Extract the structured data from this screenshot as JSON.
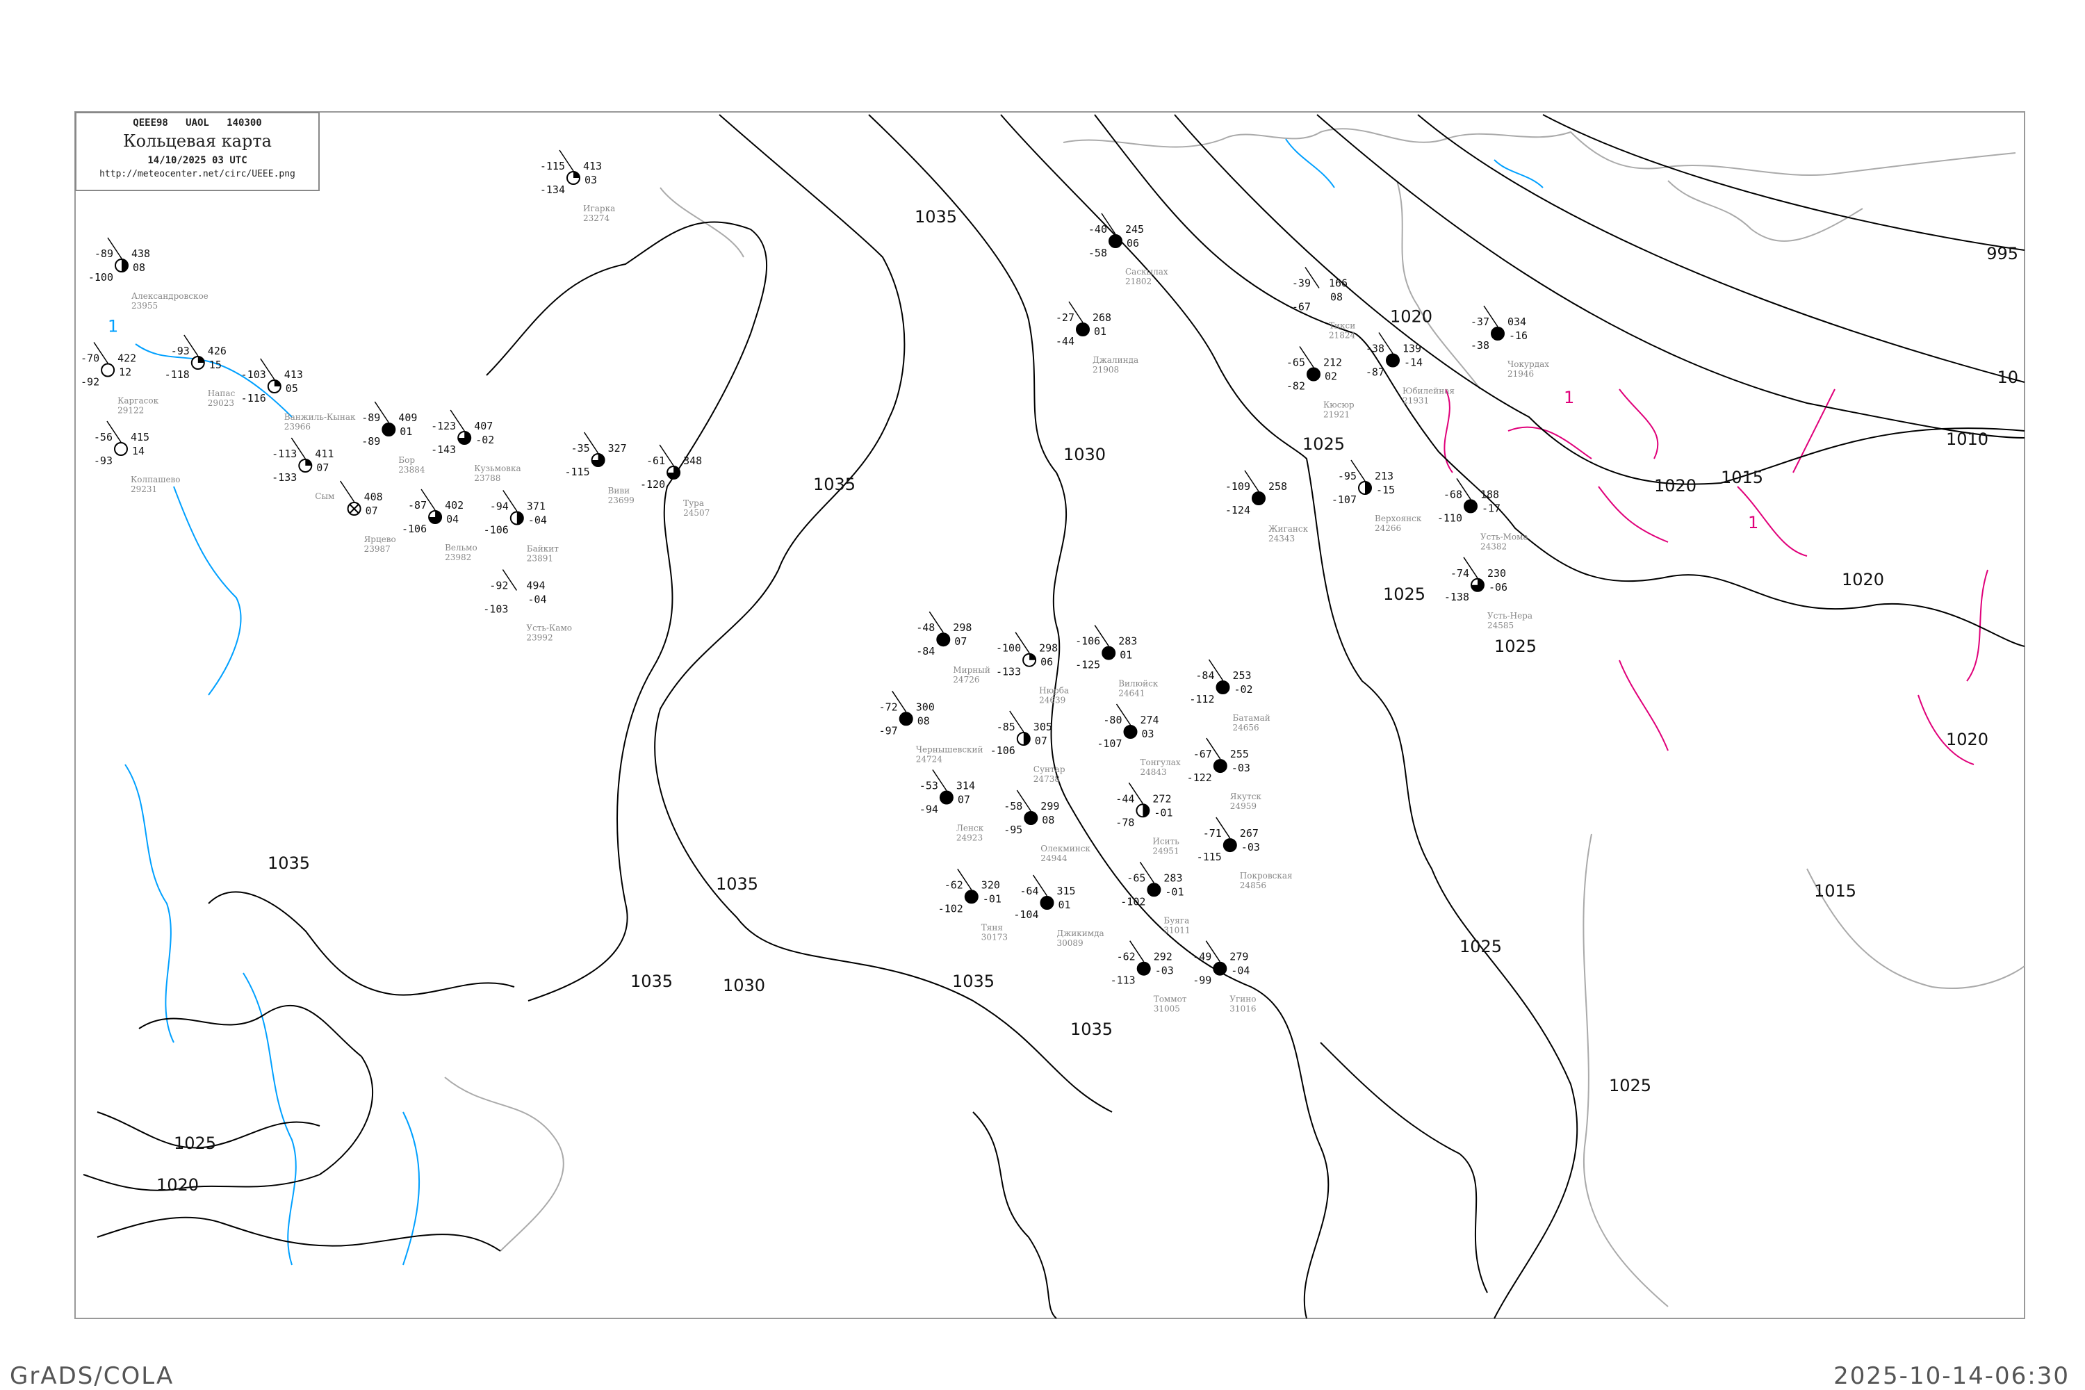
{
  "header": {
    "code_line": "QEEE98   UAOL   140300",
    "title": "Кольцевая карта",
    "date": "14/10/2025 03 UTC",
    "url": "http://meteocenter.net/circ/UEEE.png"
  },
  "footer": {
    "left": "GrADS/COLA",
    "right": "2025-10-14-06:30"
  },
  "colors": {
    "isobar": "#000000",
    "coast": "#aaaaaa",
    "river": "#00a0ff",
    "isotherm": "#e0007a",
    "snow_marker": "#3399ff",
    "highlight_marker": "#ffee00"
  },
  "isobar_labels": [
    "1035",
    "1035",
    "1035",
    "1035",
    "1035",
    "1035",
    "1030",
    "1030",
    "1025",
    "1025",
    "1025",
    "1025",
    "1025",
    "1020",
    "1020",
    "1020",
    "1020",
    "1015",
    "1015",
    "1010",
    "10",
    "995",
    "1025",
    "1020",
    "1035"
  ],
  "isotherm_labels": [
    "1",
    "1",
    "1"
  ],
  "stations": [
    {
      "name": "Игарка",
      "id": "23274",
      "t": "-115",
      "p": "413",
      "td": "-134",
      "tend": "03",
      "cover": "partial"
    },
    {
      "name": "Александровское",
      "id": "23955",
      "t": "-89",
      "p": "438",
      "td": "-100",
      "tend": "08",
      "cover": "half"
    },
    {
      "name": "Каргасок",
      "id": "29122",
      "t": "-70",
      "p": "422",
      "td": "-92",
      "tend": "12",
      "cover": "clear"
    },
    {
      "name": "Напас",
      "id": "29023",
      "t": "-93",
      "p": "426",
      "td": "-118",
      "tend": "15",
      "cover": "partial"
    },
    {
      "name": "Ванжиль-Кынак",
      "id": "23966",
      "t": "-103",
      "p": "413",
      "td": "-116",
      "tend": "05",
      "cover": "partial"
    },
    {
      "name": "Колпашево",
      "id": "29231",
      "t": "-56",
      "p": "415",
      "td": "-93",
      "tend": "14",
      "cover": "clear"
    },
    {
      "name": "Сым",
      "id": "",
      "t": "-113",
      "p": "411",
      "td": "-133",
      "tend": "07",
      "cover": "partial"
    },
    {
      "name": "Бор",
      "id": "23884",
      "t": "-89",
      "p": "409",
      "td": "-89",
      "tend": "01",
      "cover": "overcast"
    },
    {
      "name": "Кузьмовка",
      "id": "23788",
      "t": "-123",
      "p": "407",
      "td": "-143",
      "tend": "-02",
      "cover": "mostly"
    },
    {
      "name": "Ярцево",
      "id": "23987",
      "t": "",
      "p": "408",
      "td": "",
      "tend": "07",
      "cover": "obscured"
    },
    {
      "name": "Вельмо",
      "id": "23982",
      "t": "-87",
      "p": "402",
      "td": "-106",
      "tend": "04",
      "cover": "mostly"
    },
    {
      "name": "Байкит",
      "id": "23891",
      "t": "-94",
      "p": "371",
      "td": "-106",
      "tend": "-04",
      "cover": "half"
    },
    {
      "name": "Усть-Камо",
      "id": "23992",
      "t": "-92",
      "p": "494",
      "td": "-103",
      "tend": "-04",
      "cover": "none"
    },
    {
      "name": "Виви",
      "id": "23699",
      "t": "-35",
      "p": "327",
      "td": "-115",
      "tend": "",
      "cover": "mostly"
    },
    {
      "name": "Тура",
      "id": "24507",
      "t": "-61",
      "p": "348",
      "td": "-120",
      "tend": "",
      "cover": "mostly"
    },
    {
      "name": "Саскылах",
      "id": "21802",
      "t": "-40",
      "p": "245",
      "td": "-58",
      "tend": "06",
      "cover": "overcast"
    },
    {
      "name": "Джалинда",
      "id": "21908",
      "t": "-27",
      "p": "268",
      "td": "-44",
      "tend": "01",
      "cover": "overcast"
    },
    {
      "name": "Тикси",
      "id": "21824",
      "t": "-39",
      "p": "166",
      "td": "-67",
      "tend": "08",
      "cover": "none"
    },
    {
      "name": "Кюсюр",
      "id": "21921",
      "t": "-65",
      "p": "212",
      "td": "-82",
      "tend": "02",
      "cover": "overcast"
    },
    {
      "name": "Юбилейная",
      "id": "21931",
      "t": "-38",
      "p": "139",
      "td": "-87",
      "tend": "-14",
      "cover": "overcast"
    },
    {
      "name": "Чокурдах",
      "id": "21946",
      "t": "-37",
      "p": "034",
      "td": "-38",
      "tend": "-16",
      "cover": "overcast"
    },
    {
      "name": "Жиганск",
      "id": "24343",
      "t": "-109",
      "p": "258",
      "td": "-124",
      "tend": "",
      "cover": "overcast"
    },
    {
      "name": "Верхоянск",
      "id": "24266",
      "t": "-95",
      "p": "213",
      "td": "-107",
      "tend": "-15",
      "cover": "half"
    },
    {
      "name": "Усть-Мома",
      "id": "24382",
      "t": "-68",
      "p": "188",
      "td": "-110",
      "tend": "-17",
      "cover": "overcast"
    },
    {
      "name": "Усть-Нера",
      "id": "24585",
      "t": "-74",
      "p": "230",
      "td": "-138",
      "tend": "-06",
      "cover": "mostly"
    },
    {
      "name": "Нюрба",
      "id": "24639",
      "t": "-100",
      "p": "298",
      "td": "-133",
      "tend": "06",
      "cover": "partial"
    },
    {
      "name": "Вилюйск",
      "id": "24641",
      "t": "-106",
      "p": "283",
      "td": "-125",
      "tend": "01",
      "cover": "overcast"
    },
    {
      "name": "Мирный",
      "id": "24726",
      "t": "-48",
      "p": "298",
      "td": "-84",
      "tend": "07",
      "cover": "overcast"
    },
    {
      "name": "Чернышевский",
      "id": "24724",
      "t": "-72",
      "p": "300",
      "td": "-97",
      "tend": "08",
      "cover": "overcast"
    },
    {
      "name": "Сунтар",
      "id": "24738",
      "t": "-85",
      "p": "305",
      "td": "-106",
      "tend": "07",
      "cover": "half"
    },
    {
      "name": "Ленск",
      "id": "24923",
      "t": "-53",
      "p": "314",
      "td": "-94",
      "tend": "07",
      "cover": "overcast"
    },
    {
      "name": "Тонгулах",
      "id": "24843",
      "t": "-80",
      "p": "274",
      "td": "-107",
      "tend": "03",
      "cover": "overcast"
    },
    {
      "name": "Олекминск",
      "id": "24944",
      "t": "-58",
      "p": "299",
      "td": "-95",
      "tend": "08",
      "cover": "overcast"
    },
    {
      "name": "Исить",
      "id": "24951",
      "t": "-44",
      "p": "272",
      "td": "-78",
      "tend": "-01",
      "cover": "half"
    },
    {
      "name": "Батамай",
      "id": "24656",
      "t": "-84",
      "p": "253",
      "td": "-112",
      "tend": "-02",
      "cover": "overcast"
    },
    {
      "name": "Якутск",
      "id": "24959",
      "t": "-67",
      "p": "255",
      "td": "-122",
      "tend": "-03",
      "cover": "overcast"
    },
    {
      "name": "Покровская",
      "id": "24856",
      "t": "-71",
      "p": "267",
      "td": "-115",
      "tend": "-03",
      "cover": "overcast"
    },
    {
      "name": "Тяня",
      "id": "30173",
      "t": "-62",
      "p": "320",
      "td": "-102",
      "tend": "-01",
      "cover": "overcast"
    },
    {
      "name": "Джикимда",
      "id": "30089",
      "t": "-64",
      "p": "315",
      "td": "-104",
      "tend": "01",
      "cover": "overcast"
    },
    {
      "name": "Буяга",
      "id": "31011",
      "t": "-65",
      "p": "283",
      "td": "-102",
      "tend": "-01",
      "cover": "overcast"
    },
    {
      "name": "Томмот",
      "id": "31005",
      "t": "-62",
      "p": "292",
      "td": "-113",
      "tend": "-03",
      "cover": "overcast"
    },
    {
      "name": "Угино",
      "id": "31016",
      "t": "-49",
      "p": "279",
      "td": "-99",
      "tend": "-04",
      "cover": "overcast"
    }
  ]
}
